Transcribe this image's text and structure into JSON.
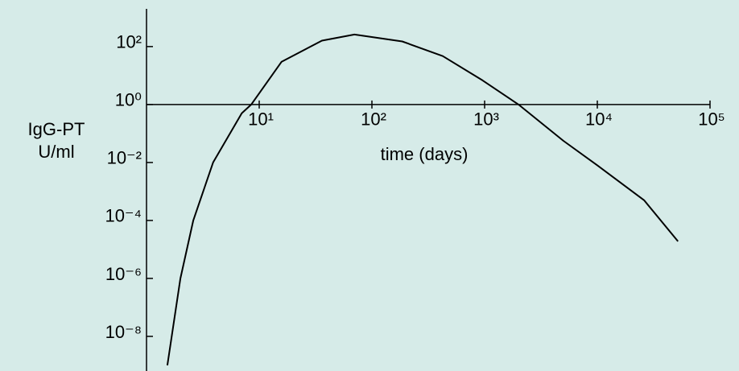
{
  "chart_data": {
    "type": "line",
    "ylabel": [
      "IgG-PT",
      "U/ml"
    ],
    "xlabel": "time (days)",
    "xscale": "log",
    "yscale": "log",
    "x": [
      1.53,
      2.0,
      2.6,
      3.9,
      7,
      8.5,
      15.8,
      36,
      70,
      186,
      425,
      960,
      2000,
      5000,
      10000,
      26000,
      52000
    ],
    "values": [
      1e-09,
      1e-06,
      0.0001,
      0.01,
      0.5,
      1,
      30,
      160,
      260,
      150,
      47,
      6.8,
      1,
      0.056,
      0.008,
      0.0005,
      1.9e-05
    ],
    "color": "#000000",
    "xlim": [
      1,
      100000
    ],
    "ylim": [
      1e-09,
      2000
    ],
    "xticks": [
      {
        "value": 10,
        "label": "10¹"
      },
      {
        "value": 100,
        "label": "10²"
      },
      {
        "value": 1000,
        "label": "10³"
      },
      {
        "value": 10000,
        "label": "10⁴"
      },
      {
        "value": 100000,
        "label": "10⁵"
      }
    ],
    "yticks": [
      {
        "value": 100,
        "label": "10²"
      },
      {
        "value": 1,
        "label": "10⁰"
      },
      {
        "value": 0.01,
        "label": "10⁻²"
      },
      {
        "value": 0.0001,
        "label": "10⁻⁴"
      },
      {
        "value": 1e-06,
        "label": "10⁻⁶"
      },
      {
        "value": 1e-08,
        "label": "10⁻⁸"
      }
    ]
  }
}
